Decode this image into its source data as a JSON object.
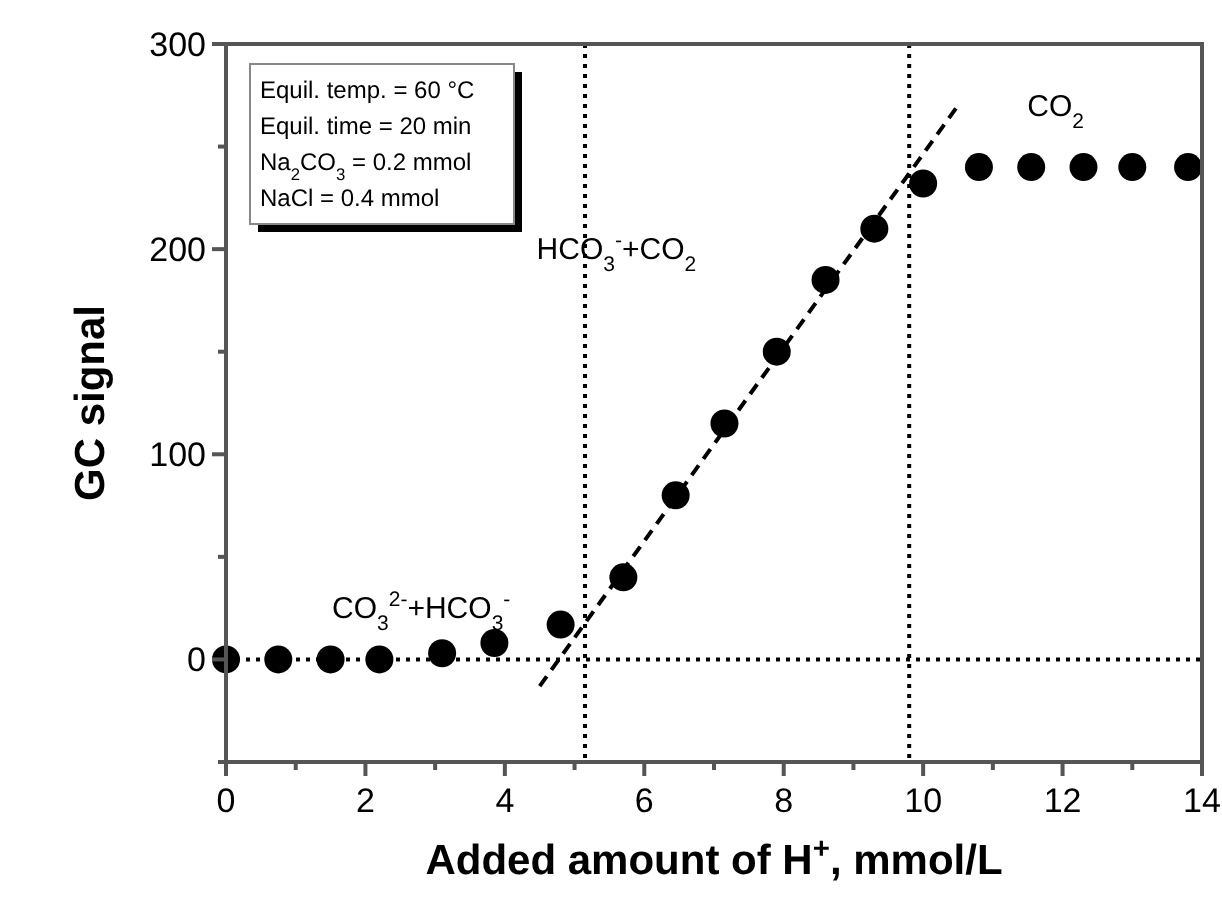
{
  "chart_data": {
    "type": "scatter",
    "xlabel": "Added amount of H$^{+}$, mmol/L",
    "ylabel": "GC signal",
    "x": [
      0,
      0.75,
      1.5,
      2.2,
      3.1,
      3.85,
      4.8,
      5.7,
      6.45,
      7.15,
      7.9,
      8.6,
      9.3,
      10.0,
      10.8,
      11.55,
      12.3,
      13.0,
      13.8
    ],
    "series": [
      {
        "color": "#000000",
        "marker": "circle",
        "values": [
          0,
          0,
          0,
          0,
          3,
          8,
          17,
          40,
          80,
          115,
          150,
          185,
          210,
          232,
          240,
          240,
          240,
          240,
          240
        ]
      },
      {
        "type": "line",
        "color": "#000000",
        "line_style": "dashed",
        "marker": "none",
        "x": [
          4.5,
          10.5
        ],
        "values": [
          -13,
          270
        ]
      }
    ],
    "xlim": [
      0,
      14
    ],
    "ylim": [
      -50,
      300
    ],
    "xticks": [
      0,
      {
        "value": 1,
        "label": null
      },
      2,
      {
        "value": 3,
        "label": null
      },
      4,
      {
        "value": 5,
        "label": null
      },
      6,
      {
        "value": 7,
        "label": null
      },
      8,
      {
        "value": 9,
        "label": null
      },
      10,
      {
        "value": 11,
        "label": null
      },
      12,
      {
        "value": 13,
        "label": null
      },
      14
    ],
    "yticks": [
      {
        "value": -50,
        "label": null
      },
      0,
      {
        "value": 50,
        "label": null
      },
      100,
      {
        "value": 150,
        "label": null
      },
      200,
      {
        "value": 250,
        "label": null
      },
      300
    ],
    "ref_lines": [
      {
        "axis": "y",
        "value": 0,
        "line_style": "dotted"
      },
      {
        "axis": "x",
        "value": 5.15,
        "line_style": "dotted"
      },
      {
        "axis": "x",
        "value": 9.8,
        "line_style": "dotted"
      }
    ],
    "annotations": [
      "Equil. temp. = 60 °C",
      "Equil. time = 20 min",
      "Na$_{2}$CO$_{3}$ = 0.2 mmol",
      "NaCl = 0.4 mmol",
      "CO$_{3}$$^{2-}$+HCO$_{3}$$^{-}$",
      "HCO$_{3}$$^{-}$+CO$_{2}$",
      "CO$_{2}$"
    ],
    "grid": false
  }
}
